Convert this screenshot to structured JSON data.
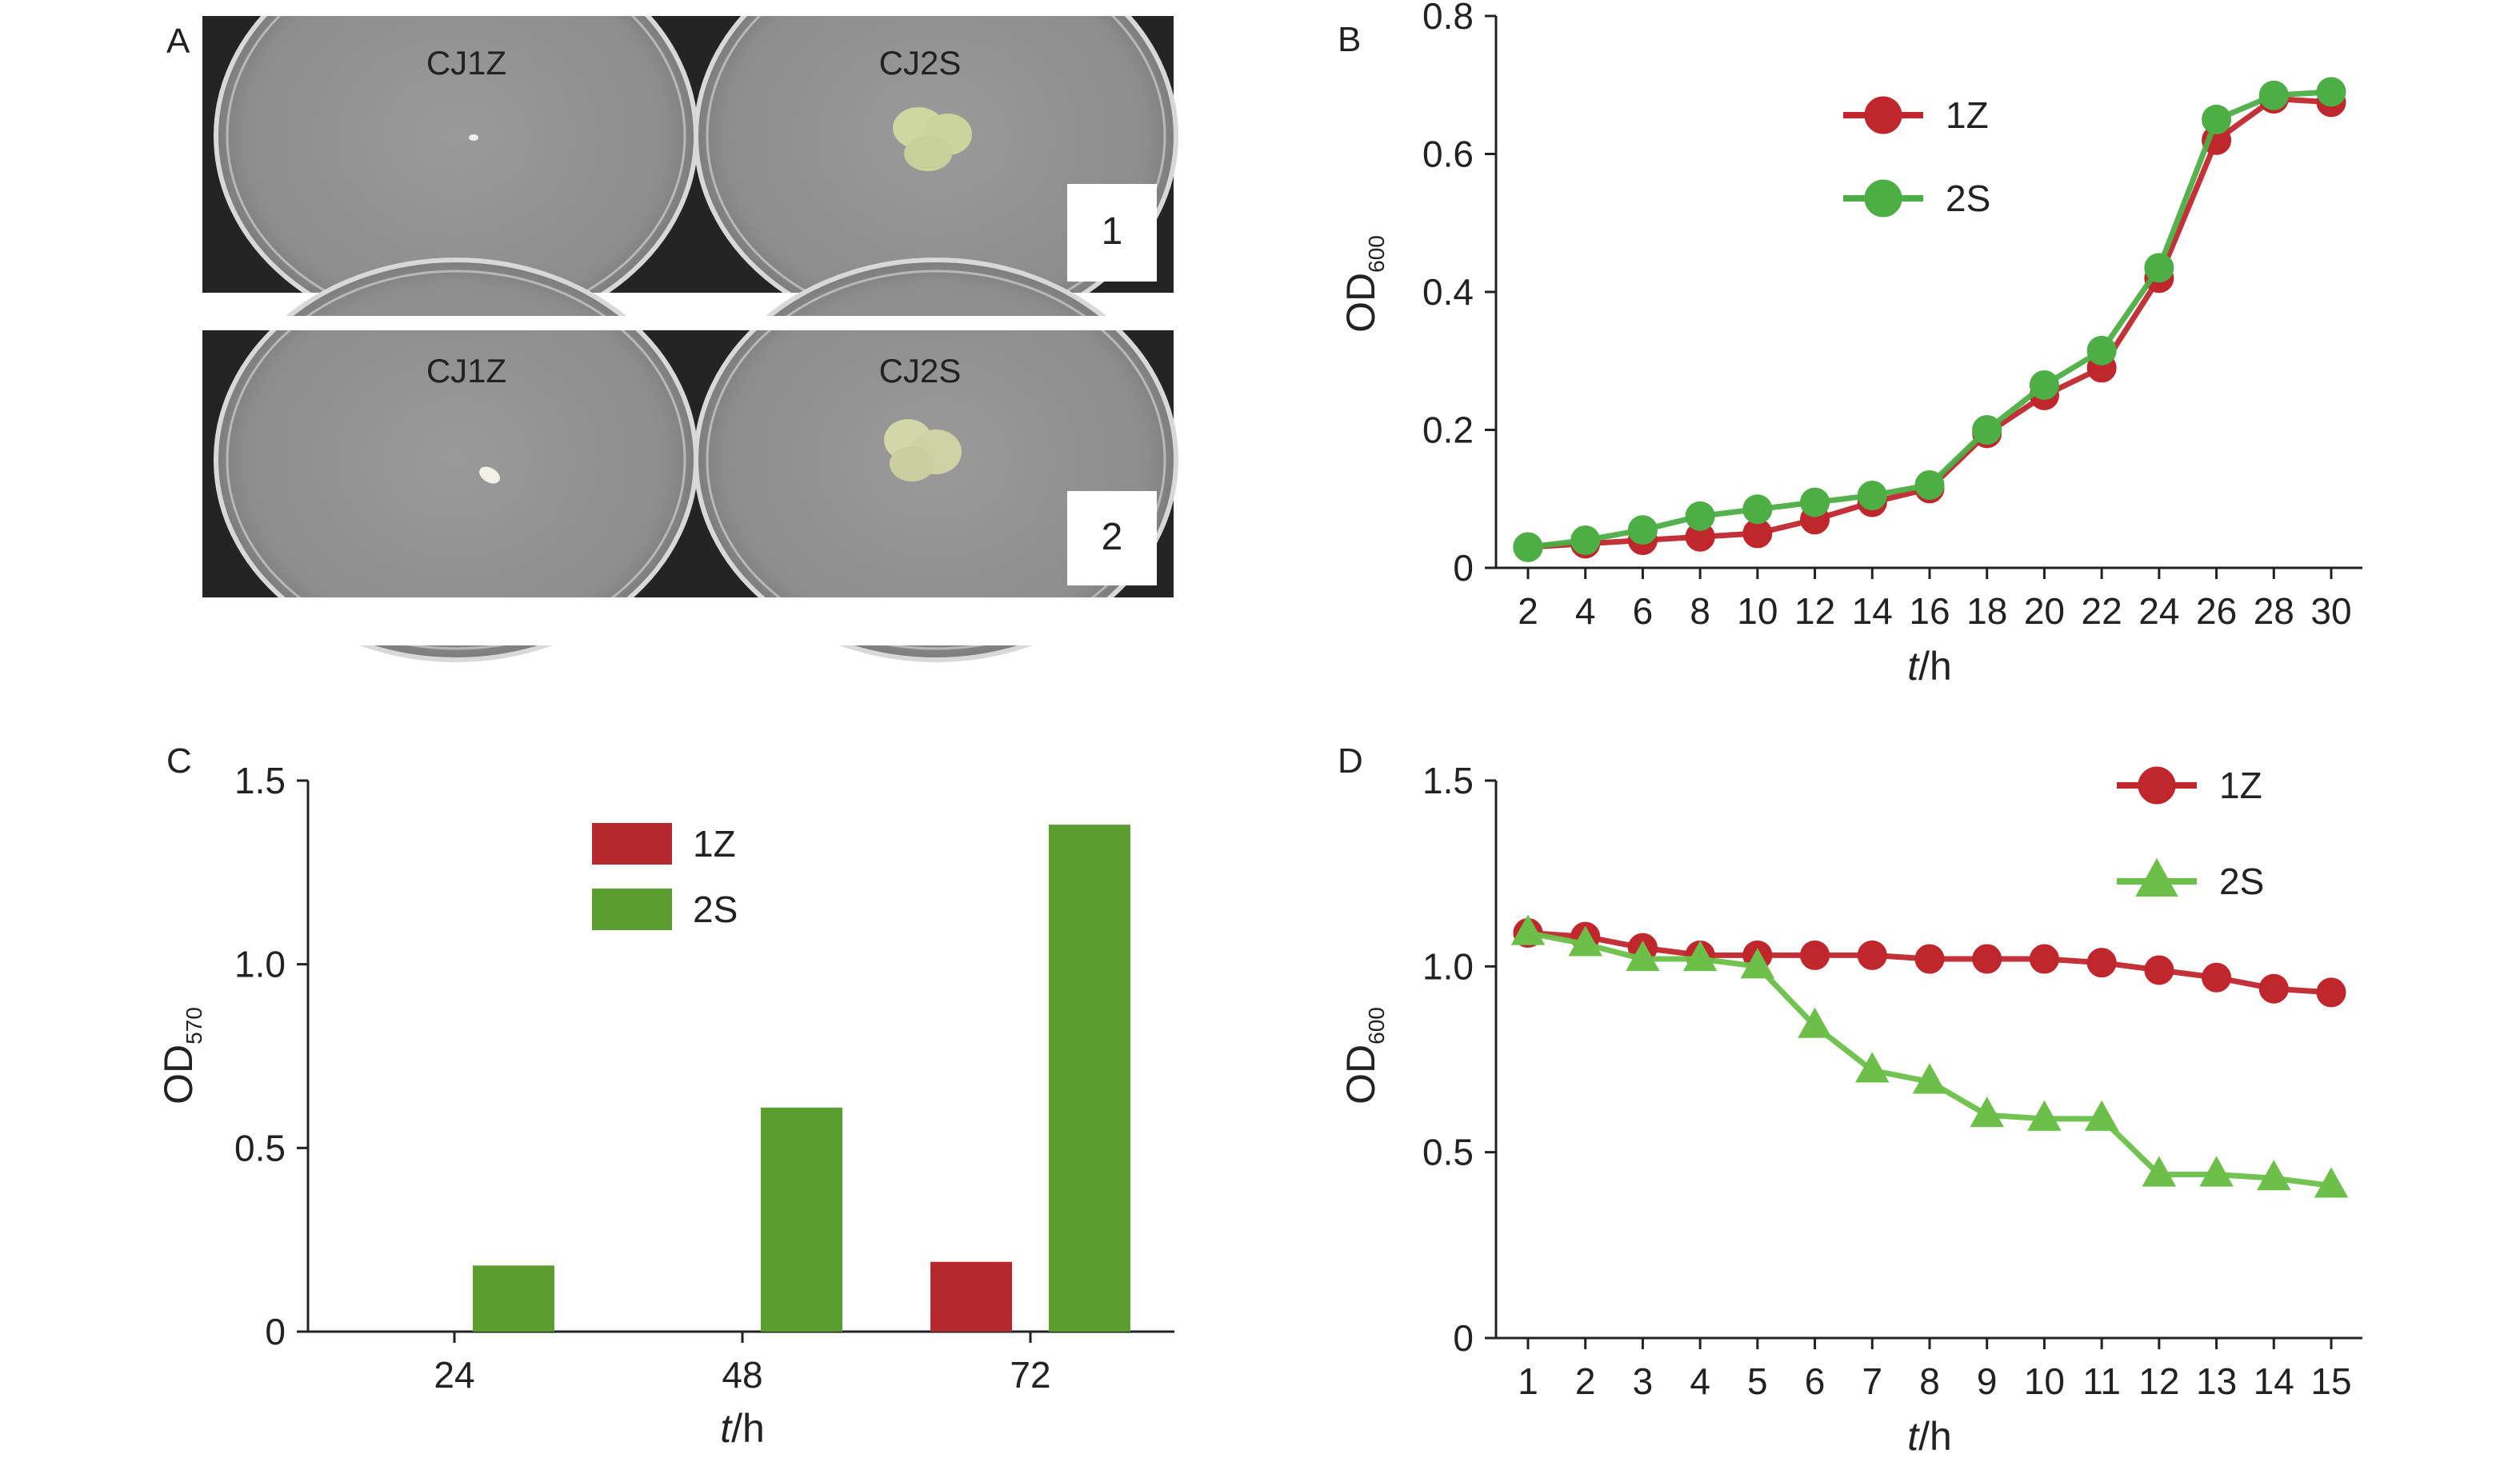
{
  "panel_a": {
    "label": "A",
    "rows": [
      {
        "left_label": "CJ1Z",
        "right_label": "CJ2S",
        "number": "1"
      },
      {
        "left_label": "CJ1Z",
        "right_label": "CJ2S",
        "number": "2"
      }
    ]
  },
  "chart_data": [
    {
      "panel": "B",
      "type": "line",
      "x": [
        2,
        4,
        6,
        8,
        10,
        12,
        14,
        16,
        18,
        20,
        22,
        24,
        26,
        28,
        30
      ],
      "xlabel_var": "t",
      "xlabel_unit": "/h",
      "ylabel_main": "OD",
      "ylabel_sub": "600",
      "ylim": [
        0,
        0.8
      ],
      "yticks": [
        0,
        0.2,
        0.4,
        0.6,
        0.8
      ],
      "ytick_labels": [
        "0",
        "0.2",
        "0.4",
        "0.6",
        "0.8"
      ],
      "legend_position": "top-left",
      "series": [
        {
          "name": "1Z",
          "color": "#c0272d",
          "marker": "circle",
          "values": [
            0.03,
            0.035,
            0.04,
            0.045,
            0.05,
            0.07,
            0.095,
            0.115,
            0.195,
            0.25,
            0.29,
            0.42,
            0.62,
            0.68,
            0.675
          ]
        },
        {
          "name": "2S",
          "color": "#4cae45",
          "marker": "circle",
          "values": [
            0.03,
            0.04,
            0.055,
            0.075,
            0.085,
            0.095,
            0.105,
            0.12,
            0.2,
            0.265,
            0.315,
            0.435,
            0.65,
            0.685,
            0.69
          ]
        }
      ]
    },
    {
      "panel": "C",
      "type": "bar",
      "categories": [
        "24",
        "48",
        "72"
      ],
      "xlabel_var": "t",
      "xlabel_unit": "/h",
      "ylabel_main": "OD",
      "ylabel_sub": "570",
      "ylim": [
        0,
        1.5
      ],
      "yticks": [
        0,
        0.5,
        1.0,
        1.5
      ],
      "ytick_labels": [
        "0",
        "0.5",
        "1.0",
        "1.5"
      ],
      "legend_position": "top-left",
      "series": [
        {
          "name": "1Z",
          "color": "#b5282e",
          "values": [
            0,
            0,
            0.19
          ]
        },
        {
          "name": "2S",
          "color": "#5a9e32",
          "values": [
            0.18,
            0.61,
            1.38
          ]
        }
      ]
    },
    {
      "panel": "D",
      "type": "line",
      "x": [
        1,
        2,
        3,
        4,
        5,
        6,
        7,
        8,
        9,
        10,
        11,
        12,
        13,
        14,
        15
      ],
      "xlabel_var": "t",
      "xlabel_unit": "/h",
      "ylabel_main": "OD",
      "ylabel_sub": "600",
      "ylim": [
        0,
        1.5
      ],
      "yticks": [
        0,
        0.5,
        1.0,
        1.5
      ],
      "ytick_labels": [
        "0",
        "0.5",
        "1.0",
        "1.5"
      ],
      "legend_position": "top-right",
      "series": [
        {
          "name": "1Z",
          "color": "#c0272d",
          "marker": "circle",
          "values": [
            1.09,
            1.08,
            1.05,
            1.03,
            1.03,
            1.03,
            1.03,
            1.02,
            1.02,
            1.02,
            1.01,
            0.99,
            0.97,
            0.94,
            0.93
          ]
        },
        {
          "name": "2S",
          "color": "#6cc04a",
          "marker": "triangle",
          "values": [
            1.09,
            1.06,
            1.02,
            1.02,
            1.0,
            0.84,
            0.72,
            0.69,
            0.6,
            0.59,
            0.59,
            0.44,
            0.44,
            0.43,
            0.41
          ]
        }
      ]
    }
  ]
}
